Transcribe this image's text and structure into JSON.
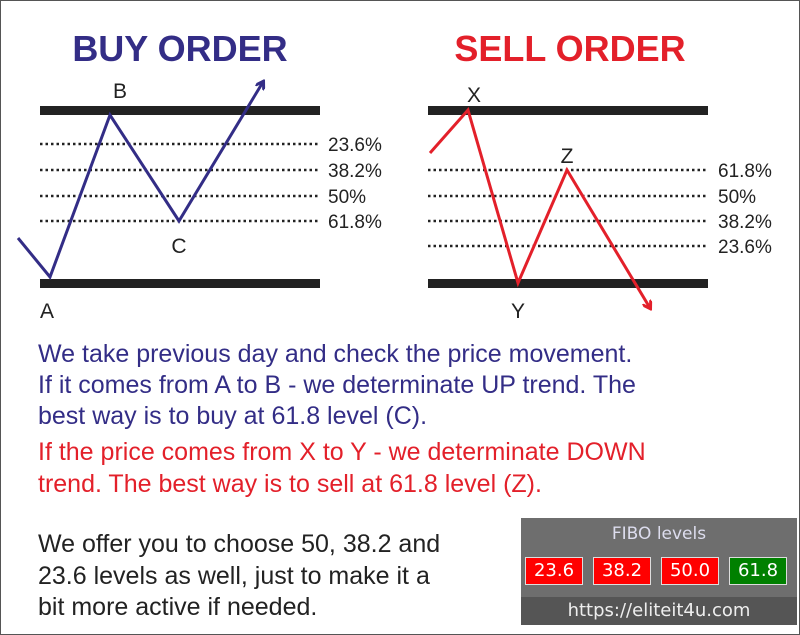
{
  "buy": {
    "title": "BUY ORDER",
    "points": [
      "A",
      "B",
      "C"
    ],
    "levels": [
      "23.6%",
      "38.2%",
      "50%",
      "61.8%"
    ]
  },
  "sell": {
    "title": "SELL ORDER",
    "points": [
      "X",
      "Y",
      "Z"
    ],
    "levels": [
      "61.8%",
      "50%",
      "38.2%",
      "23.6%"
    ]
  },
  "colors": {
    "buy": "#332d86",
    "sell": "#e3202a",
    "active_level": "#008000",
    "inactive_level": "#ff0000"
  },
  "text": {
    "blue": [
      "We take previous day and check the price movement.",
      "If it comes from A to B - we determinate UP trend. The",
      "best way is to buy at 61.8 level (C)."
    ],
    "red": [
      "If the price comes from X to Y - we determinate DOWN",
      "trend. The best way is to sell at 61.8 level (Z)."
    ],
    "black": [
      "We offer you to choose 50, 38.2 and",
      "23.6 levels as well, just to make it a",
      "bit more active if needed."
    ]
  },
  "panel": {
    "title": "FIBO levels",
    "buttons": [
      {
        "label": "23.6",
        "active": false
      },
      {
        "label": "38.2",
        "active": false
      },
      {
        "label": "50.0",
        "active": false
      },
      {
        "label": "61.8",
        "active": true
      }
    ],
    "url": "https://eliteit4u.com"
  }
}
